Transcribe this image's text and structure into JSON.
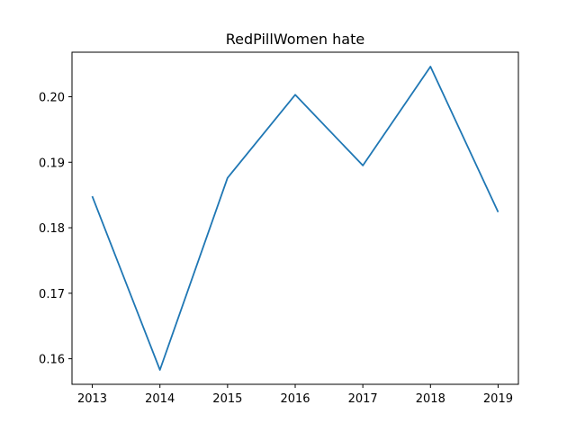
{
  "chart_data": {
    "type": "line",
    "title": "RedPillWomen hate",
    "xlabel": "",
    "ylabel": "",
    "x": [
      2013,
      2014,
      2015,
      2016,
      2017,
      2018,
      2019
    ],
    "x_tick_labels": [
      "2013",
      "2014",
      "2015",
      "2016",
      "2017",
      "2018",
      "2019"
    ],
    "y_ticks": [
      0.16,
      0.17,
      0.18,
      0.19,
      0.2
    ],
    "y_tick_labels": [
      "0.16",
      "0.17",
      "0.18",
      "0.19",
      "0.20"
    ],
    "xlim": [
      2012.7,
      2019.3
    ],
    "ylim": [
      0.1561,
      0.2068
    ],
    "series": [
      {
        "color": "#1f77b4",
        "values": [
          0.1848,
          0.1583,
          0.1876,
          0.2003,
          0.1895,
          0.2046,
          0.1824
        ]
      }
    ],
    "grid": false,
    "legend": "none"
  }
}
